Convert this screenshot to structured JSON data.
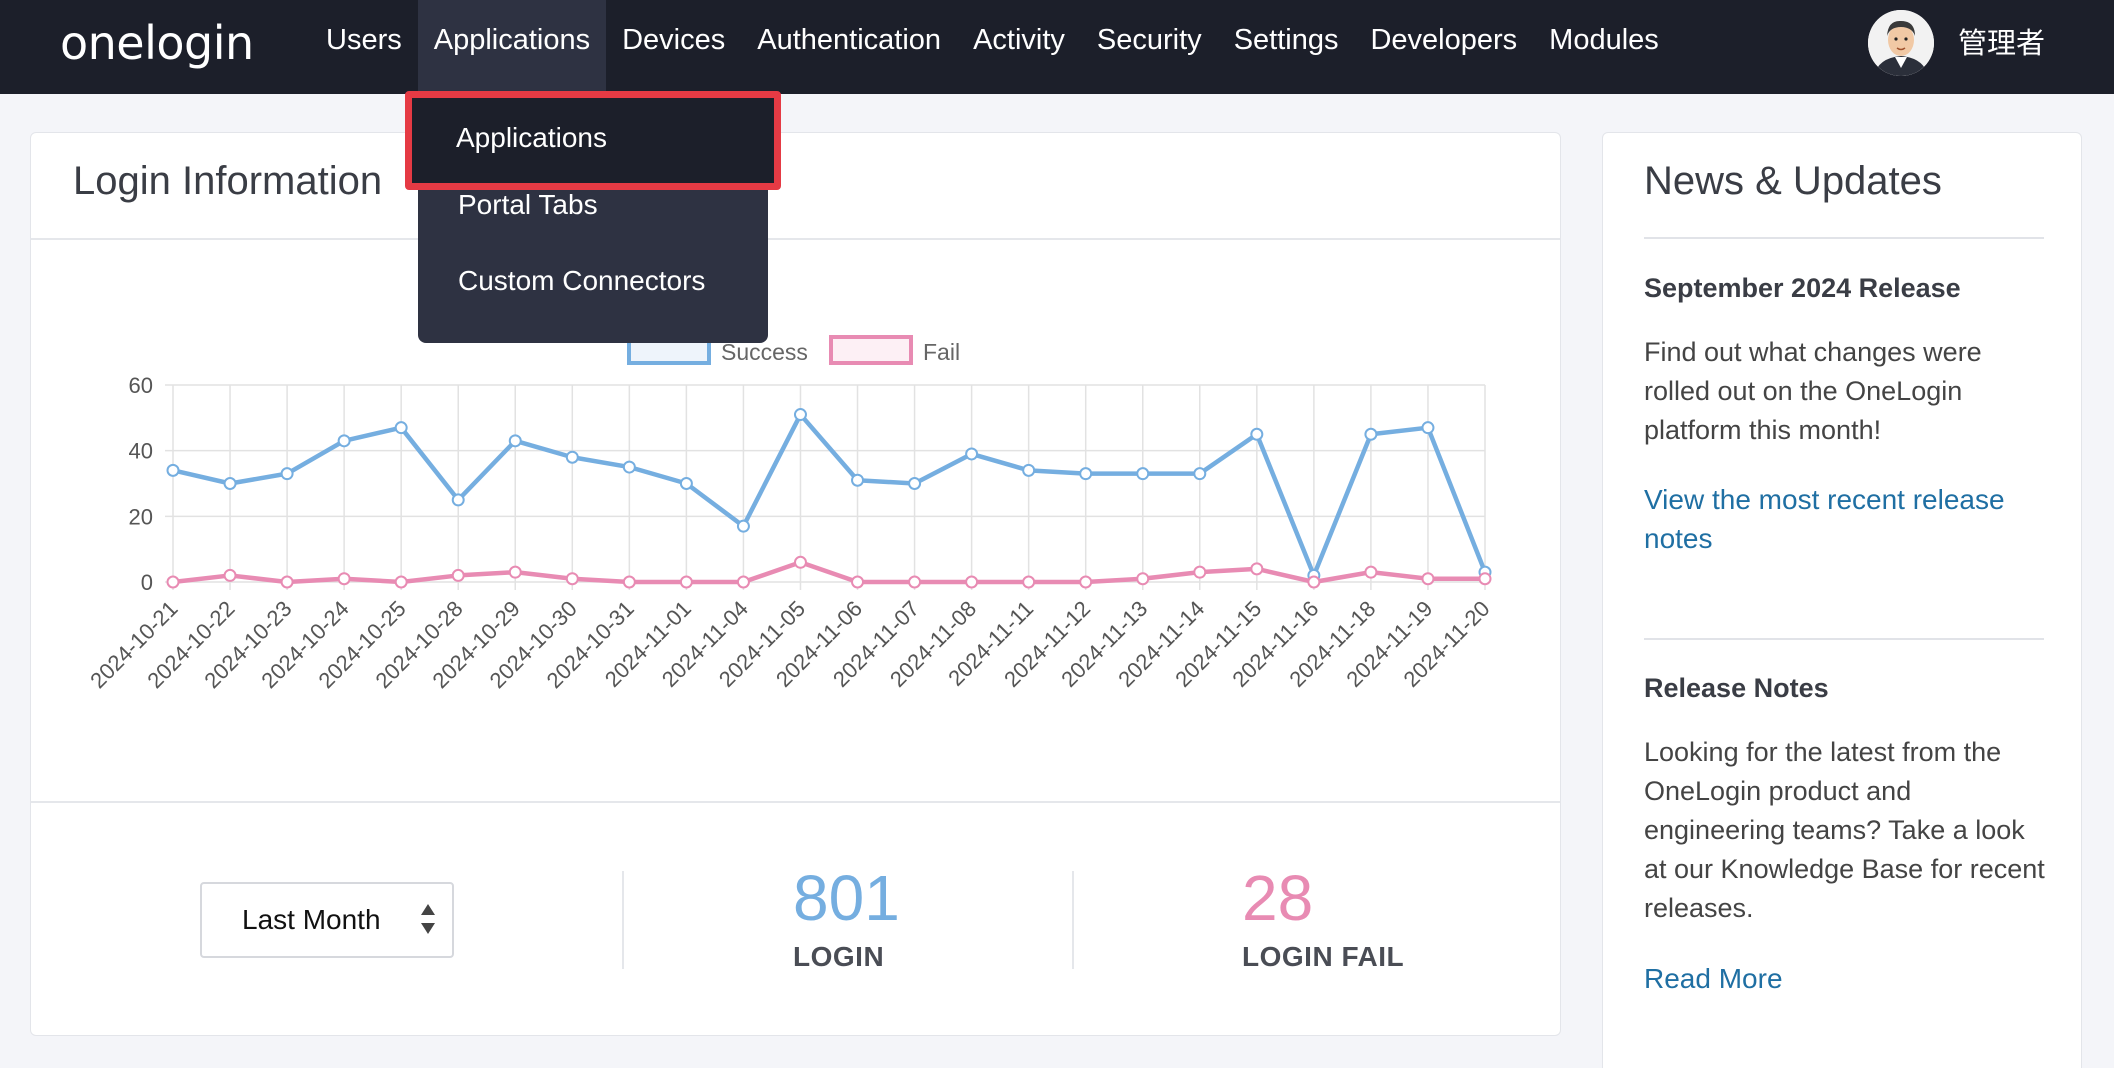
{
  "brand": {
    "logo_text": "onelogin"
  },
  "nav": {
    "items": [
      "Users",
      "Applications",
      "Devices",
      "Authentication",
      "Activity",
      "Security",
      "Settings",
      "Developers",
      "Modules"
    ],
    "active": "Applications",
    "user_name": "管理者"
  },
  "dropdown": {
    "items": [
      "Applications",
      "Portal Tabs",
      "Custom Connectors"
    ],
    "highlighted": "Applications"
  },
  "login_card": {
    "title": "Login Information",
    "period_select": "Last Month",
    "login_count": "801",
    "login_label": "LOGIN",
    "fail_count": "28",
    "fail_label": "LOGIN FAIL"
  },
  "colors": {
    "success": "#75aee0",
    "fail": "#e88bb3",
    "link": "#1f6fa3",
    "highlight": "#e53a44"
  },
  "chart_data": {
    "type": "line",
    "x": [
      "2024-10-21",
      "2024-10-22",
      "2024-10-23",
      "2024-10-24",
      "2024-10-25",
      "2024-10-28",
      "2024-10-29",
      "2024-10-30",
      "2024-10-31",
      "2024-11-01",
      "2024-11-04",
      "2024-11-05",
      "2024-11-06",
      "2024-11-07",
      "2024-11-08",
      "2024-11-11",
      "2024-11-12",
      "2024-11-13",
      "2024-11-14",
      "2024-11-15",
      "2024-11-16",
      "2024-11-18",
      "2024-11-19",
      "2024-11-20"
    ],
    "series": [
      {
        "name": "Success",
        "values": [
          34,
          30,
          33,
          43,
          47,
          25,
          43,
          38,
          35,
          30,
          17,
          51,
          31,
          30,
          39,
          34,
          33,
          33,
          33,
          45,
          2,
          45,
          47,
          3
        ]
      },
      {
        "name": "Fail",
        "values": [
          0,
          2,
          0,
          1,
          0,
          2,
          3,
          1,
          0,
          0,
          0,
          6,
          0,
          0,
          0,
          0,
          0,
          1,
          3,
          4,
          0,
          3,
          1,
          1
        ]
      }
    ],
    "ylim": [
      0,
      60
    ],
    "yticks": [
      0,
      20,
      40,
      60
    ],
    "grid": true,
    "legend": "top"
  },
  "news": {
    "title": "News & Updates",
    "item1_title": "September 2024 Release",
    "item1_body": "Find out what changes were rolled out on the OneLogin platform this month!",
    "item1_link": "View the most recent release notes",
    "item2_title": "Release Notes",
    "item2_body": "Looking for the latest from the OneLogin product and engineering teams? Take a look at our Knowledge Base for recent releases.",
    "item2_link": "Read More"
  }
}
